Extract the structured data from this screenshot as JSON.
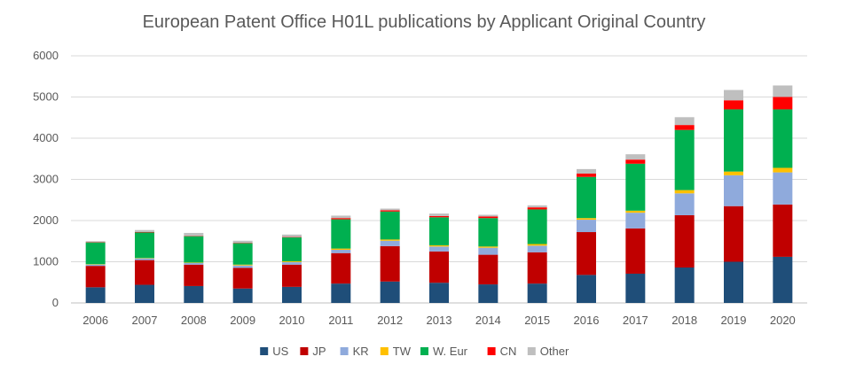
{
  "chart_data": {
    "type": "bar",
    "stacked": true,
    "title": "European Patent Office H01L publications by Applicant Original Country",
    "xlabel": "",
    "ylabel": "",
    "ylim": [
      0,
      6000
    ],
    "yticks": [
      0,
      1000,
      2000,
      3000,
      4000,
      5000,
      6000
    ],
    "grid": true,
    "legend_position": "bottom",
    "categories": [
      "2006",
      "2007",
      "2008",
      "2009",
      "2010",
      "2011",
      "2012",
      "2013",
      "2014",
      "2015",
      "2016",
      "2017",
      "2018",
      "2019",
      "2020"
    ],
    "series": [
      {
        "name": "US",
        "color": "#1f4e79",
        "values": [
          380,
          440,
          410,
          350,
          390,
          470,
          520,
          490,
          450,
          470,
          680,
          710,
          860,
          1000,
          1120
        ]
      },
      {
        "name": "JP",
        "color": "#c00000",
        "values": [
          520,
          600,
          520,
          500,
          540,
          740,
          860,
          760,
          720,
          760,
          1040,
          1100,
          1270,
          1350,
          1270
        ]
      },
      {
        "name": "KR",
        "color": "#8faadc",
        "values": [
          30,
          40,
          40,
          60,
          60,
          80,
          130,
          120,
          170,
          160,
          300,
          380,
          530,
          750,
          780
        ]
      },
      {
        "name": "TW",
        "color": "#ffc000",
        "values": [
          10,
          10,
          10,
          20,
          20,
          30,
          30,
          30,
          30,
          40,
          40,
          50,
          80,
          90,
          110
        ]
      },
      {
        "name": "W. Eur",
        "color": "#00b050",
        "values": [
          530,
          620,
          640,
          520,
          580,
          710,
          680,
          680,
          690,
          840,
          1000,
          1140,
          1460,
          1510,
          1420
        ]
      },
      {
        "name": "CN",
        "color": "#ff0000",
        "values": [
          10,
          10,
          10,
          10,
          10,
          30,
          30,
          30,
          40,
          50,
          80,
          100,
          120,
          220,
          300
        ]
      },
      {
        "name": "Other",
        "color": "#bfbfbf",
        "values": [
          20,
          50,
          70,
          50,
          60,
          60,
          40,
          60,
          40,
          50,
          110,
          130,
          190,
          250,
          280
        ]
      }
    ]
  }
}
